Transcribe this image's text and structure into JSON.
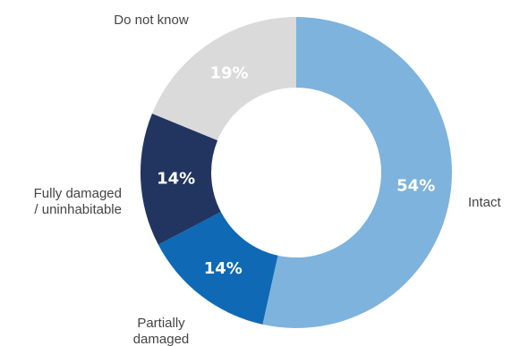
{
  "chart_data": {
    "type": "pie",
    "donut": true,
    "slices": [
      {
        "label": "Intact",
        "label_lines": [
          "Intact"
        ],
        "value": 54,
        "value_label": "54%",
        "color": "#7db3dc"
      },
      {
        "label": "Partially damaged",
        "label_lines": [
          "Partially",
          "damaged"
        ],
        "value": 14,
        "value_label": "14%",
        "color": "#0f69b4"
      },
      {
        "label": "Fully damaged / uninhabitable",
        "label_lines": [
          "Fully damaged",
          "/ uninhabitable"
        ],
        "value": 14,
        "value_label": "14%",
        "color": "#223561"
      },
      {
        "label": "Do not know",
        "label_lines": [
          "Do not know"
        ],
        "value": 19,
        "value_label": "19%",
        "color": "#dadada"
      }
    ]
  }
}
